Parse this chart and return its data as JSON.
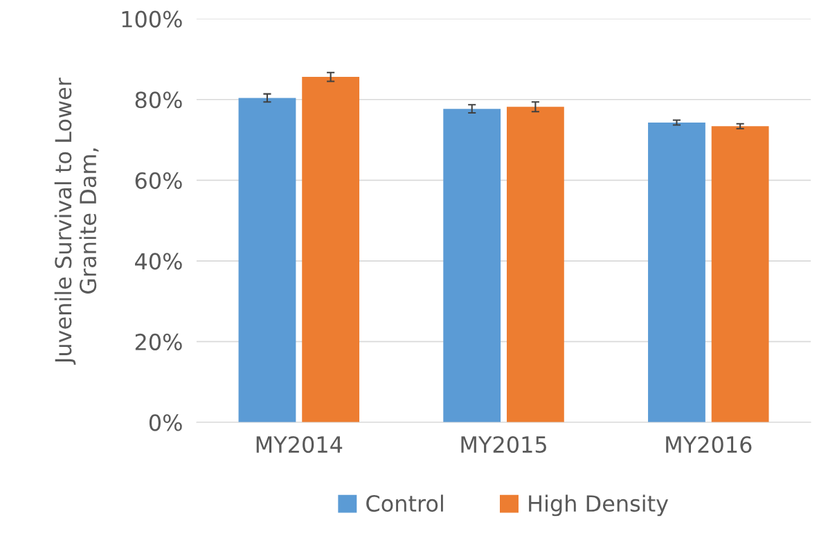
{
  "chart_data": {
    "type": "bar",
    "ylabel": "Juvenile Survival to Lower\nGranite Dam,",
    "categories": [
      "MY2014",
      "MY2015",
      "MY2016"
    ],
    "series": [
      {
        "name": "Control",
        "color": "#5b9bd5",
        "values": [
          80.4,
          77.7,
          74.3
        ],
        "errors": [
          1.0,
          1.0,
          0.6
        ]
      },
      {
        "name": "High Density",
        "color": "#ed7d31",
        "values": [
          85.6,
          78.2,
          73.4
        ],
        "errors": [
          1.1,
          1.2,
          0.6
        ]
      }
    ],
    "ylim": [
      0,
      100
    ],
    "yticks": [
      {
        "value": 0,
        "label": "0%"
      },
      {
        "value": 20,
        "label": "20%"
      },
      {
        "value": 40,
        "label": "40%"
      },
      {
        "value": 60,
        "label": "60%"
      },
      {
        "value": 80,
        "label": "80%"
      },
      {
        "value": 100,
        "label": "100%"
      }
    ],
    "grid": "y",
    "legend": "bottom"
  }
}
